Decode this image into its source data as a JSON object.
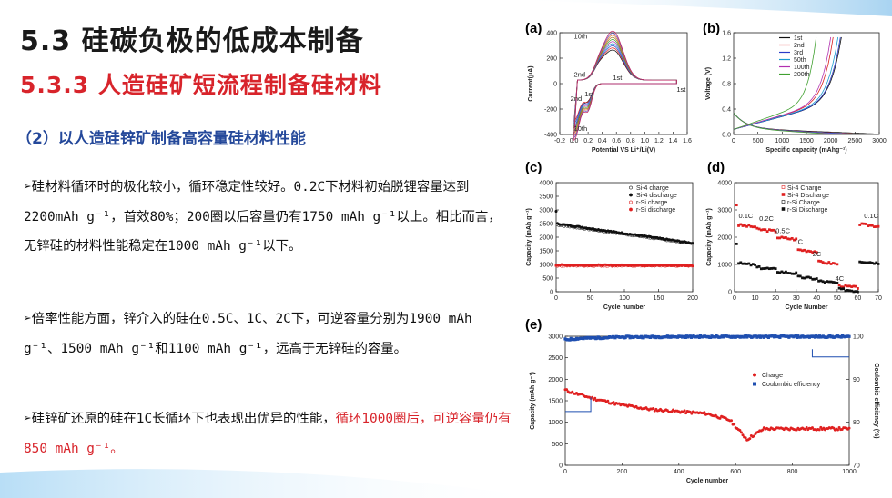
{
  "title": "5.3 硅碳负极的低成本制备",
  "subtitle": "5.3.3  人造硅矿短流程制备硅材料",
  "section_heading": "（2）以人造硅锌矿制备高容量硅材料性能",
  "bullets": [
    {
      "marker": "➢",
      "parts": [
        {
          "text": "硅材料循环时的极化较小，循环稳定性较好。0.2C下材料初始脱锂容量达到2200mAh g⁻¹，首效80%；200圈以后容量仍有1750 mAh g⁻¹以上。相比而言，无锌硅的材料性能稳定在1000 mAh g⁻¹以下。",
          "highlight": false
        }
      ]
    },
    {
      "marker": "➢",
      "parts": [
        {
          "text": "倍率性能方面，锌介入的硅在0.5C、1C、2C下，可逆容量分别为1900 mAh g⁻¹、1500 mAh g⁻¹和1100 mAh g⁻¹，远高于无锌硅的容量。",
          "highlight": false
        }
      ]
    },
    {
      "marker": "➢",
      "parts": [
        {
          "text": "硅锌矿还原的硅在1C长循环下也表现出优异的性能，",
          "highlight": false
        },
        {
          "text": "循环1000圈后，可逆容量仍有850 mAh g⁻¹。",
          "highlight": true
        }
      ]
    }
  ],
  "colors": {
    "title": "#1a1a1a",
    "subtitle": "#d8242b",
    "section_heading": "#24489a",
    "highlight": "#d8242b",
    "charge_red": "#e02020",
    "efficiency_blue": "#1f4fb0"
  },
  "chart_data": [
    {
      "panel": "(a)",
      "type": "line",
      "xlabel": "Potential VS Li⁺/Li(V)",
      "ylabel": "Current(μA)",
      "xticks": [
        "-0.2",
        "0.0",
        "0.2",
        "0.4",
        "0.6",
        "0.8",
        "1.0",
        "1.2",
        "1.4",
        "1.6"
      ],
      "yticks": [
        "400",
        "200",
        "0",
        "-200",
        "-400"
      ],
      "xlim": [
        -0.2,
        1.6
      ],
      "ylim": [
        -450,
        430
      ],
      "annotations": [
        "10th",
        "2nd",
        "1st",
        "2nd",
        "1st",
        "10th",
        "1st"
      ],
      "cycles": 10
    },
    {
      "panel": "(b)",
      "type": "line",
      "xlabel": "Specific capacity (mAhg⁻¹)",
      "ylabel": "Voltage (V)",
      "xticks": [
        "0",
        "500",
        "1000",
        "1500",
        "2000",
        "2500",
        "3000"
      ],
      "yticks": [
        "0.0",
        "0.4",
        "0.8",
        "1.2",
        "1.6"
      ],
      "xlim": [
        0,
        3000
      ],
      "ylim": [
        0,
        1.6
      ],
      "legend": [
        "1st",
        "2nd",
        "3rd",
        "50th",
        "100th",
        "200th"
      ],
      "legend_colors": [
        "#111111",
        "#d82020",
        "#2a3cc8",
        "#1a9bd0",
        "#b030b0",
        "#40a030"
      ],
      "charge_end_capacity": [
        2220,
        2050,
        2200,
        2150,
        2000,
        1700
      ],
      "discharge_end_capacity": [
        2880,
        2450,
        2350,
        2220,
        2100,
        1950
      ]
    },
    {
      "panel": "(c)",
      "type": "scatter",
      "xlabel": "Cycle number",
      "ylabel": "Capacity (mAh g⁻¹)",
      "xticks": [
        "0",
        "50",
        "100",
        "150",
        "200"
      ],
      "yticks": [
        "0",
        "500",
        "1000",
        "1500",
        "2000",
        "2500",
        "3000",
        "3500",
        "4000"
      ],
      "xlim": [
        0,
        200
      ],
      "ylim": [
        0,
        4000
      ],
      "legend": [
        "Si-4 charge",
        "Si-4 discharge",
        "r-Si charge",
        "r-Si discharge"
      ],
      "series": [
        {
          "name": "Si-4 charge",
          "x": [
            0,
            200
          ],
          "y": [
            2450,
            1760
          ]
        },
        {
          "name": "Si-4 discharge",
          "x": [
            0,
            200
          ],
          "y": [
            2500,
            1780
          ]
        },
        {
          "name": "r-Si charge",
          "x": [
            0,
            200
          ],
          "y": [
            950,
            950
          ]
        },
        {
          "name": "r-Si discharge",
          "x": [
            0,
            200
          ],
          "y": [
            980,
            960
          ]
        }
      ]
    },
    {
      "panel": "(d)",
      "type": "scatter",
      "xlabel": "Cycle Number",
      "ylabel": "Capacity (mAh g⁻¹)",
      "xticks": [
        "0",
        "10",
        "20",
        "30",
        "40",
        "50",
        "60",
        "70"
      ],
      "yticks": [
        "0",
        "1000",
        "2000",
        "3000",
        "4000"
      ],
      "xlim": [
        0,
        70
      ],
      "ylim": [
        0,
        4000
      ],
      "legend": [
        "Si-4 Charge",
        "Si-4 Discharge",
        "r-Si Charge",
        "r-Si Discharge"
      ],
      "rate_labels": [
        "0.1C",
        "0.2C",
        "0.5C",
        "1C",
        "2C",
        "4C",
        "0.1C"
      ],
      "series": [
        {
          "name": "Si-4 Discharge",
          "x": [
            1,
            5,
            10,
            15,
            20,
            25,
            30,
            35,
            40,
            45,
            50,
            55,
            60,
            65,
            70
          ],
          "y": [
            3200,
            2500,
            2450,
            2350,
            2200,
            2000,
            1900,
            1550,
            1500,
            1100,
            1050,
            250,
            220,
            2500,
            2450
          ]
        },
        {
          "name": "r-Si Discharge",
          "x": [
            1,
            5,
            10,
            15,
            20,
            25,
            30,
            35,
            40,
            45,
            50,
            55,
            60,
            65,
            70
          ],
          "y": [
            1800,
            1050,
            950,
            850,
            750,
            650,
            600,
            500,
            450,
            350,
            300,
            100,
            80,
            1100,
            1150
          ]
        }
      ]
    },
    {
      "panel": "(e)",
      "type": "scatter",
      "xlabel": "Cycle number",
      "ylabel": "Capacity (mAh g⁻¹)",
      "y2label": "Coulombic efficiency (%)",
      "xticks": [
        "0",
        "200",
        "400",
        "600",
        "800",
        "1000"
      ],
      "yticks": [
        "0",
        "500",
        "1000",
        "1500",
        "2000",
        "2500",
        "3000"
      ],
      "y2ticks": [
        "100",
        "90",
        "80",
        "70"
      ],
      "xlim": [
        0,
        1000
      ],
      "ylim": [
        0,
        3000
      ],
      "y2lim": [
        70,
        100
      ],
      "legend": [
        "Charge",
        "Coulombic efficiency"
      ],
      "series": [
        {
          "name": "Charge",
          "x": [
            0,
            20,
            100,
            200,
            300,
            400,
            500,
            580,
            640,
            700,
            800,
            900,
            1000
          ],
          "y": [
            1750,
            1700,
            1550,
            1400,
            1300,
            1250,
            1200,
            1050,
            600,
            850,
            850,
            850,
            850
          ]
        },
        {
          "name": "Coulombic efficiency",
          "x": [
            0,
            50,
            200,
            400,
            600,
            800,
            1000
          ],
          "y": [
            99.2,
            99.5,
            99.8,
            99.9,
            99.9,
            99.9,
            99.9
          ]
        }
      ]
    }
  ]
}
